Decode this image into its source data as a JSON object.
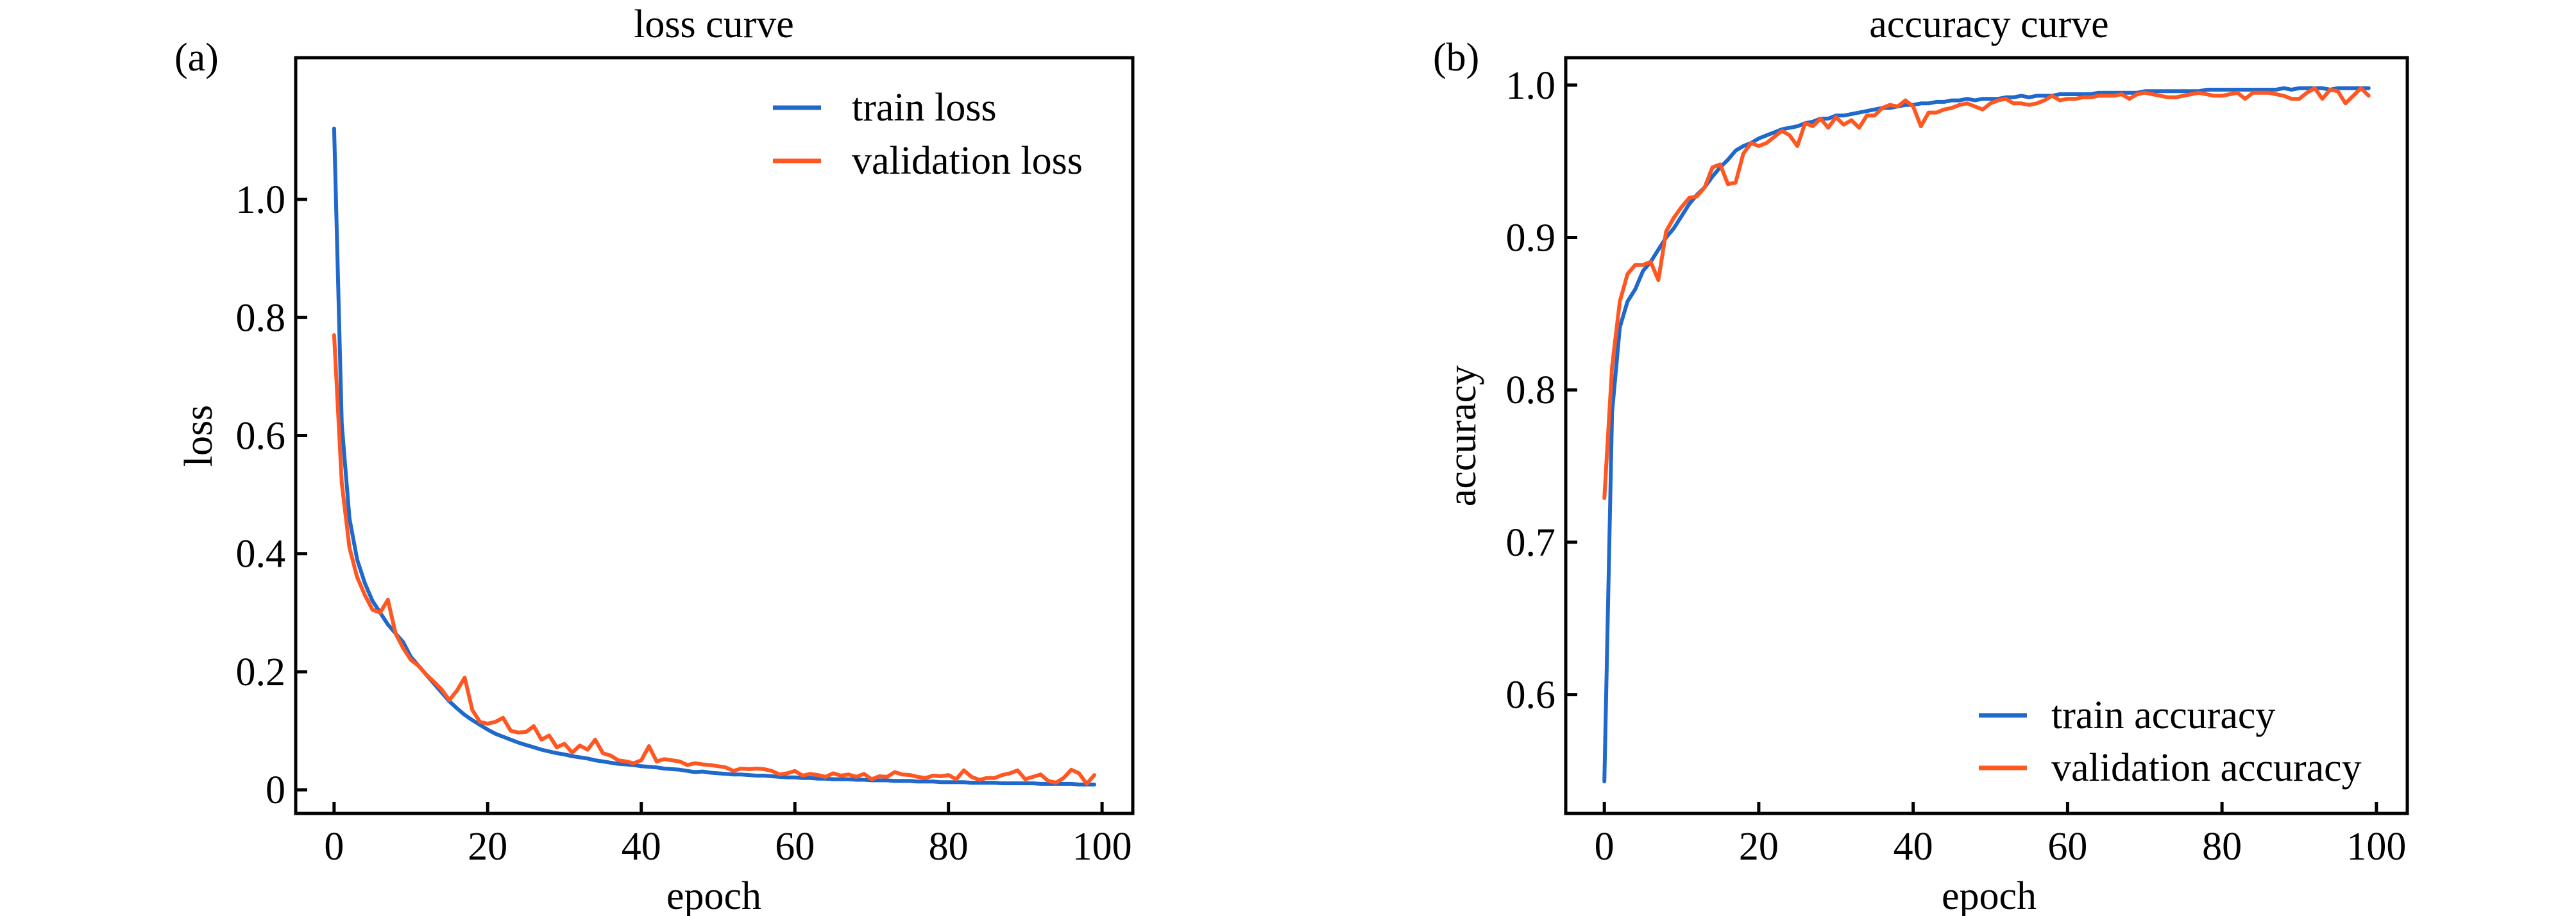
{
  "figure": {
    "colors": {
      "train": "#1f68cc",
      "validation": "#ff5722",
      "axes": "#000000"
    }
  },
  "chart_data": [
    {
      "type": "line",
      "panel_label": "(a)",
      "title": "loss curve",
      "xlabel": "epoch",
      "ylabel": "loss",
      "xlim": [
        -5,
        104
      ],
      "ylim": [
        -0.04,
        1.24
      ],
      "xticks": [
        0,
        20,
        40,
        60,
        80,
        100
      ],
      "xtick_labels": [
        "0",
        "20",
        "40",
        "60",
        "80",
        "100"
      ],
      "yticks": [
        0,
        0.2,
        0.4,
        0.6,
        0.8,
        1.0
      ],
      "ytick_labels": [
        "0",
        "0.2",
        "0.4",
        "0.6",
        "0.8",
        "1.0"
      ],
      "grid": false,
      "legend_position": "top-right",
      "series": [
        {
          "name": "train loss",
          "color": "#1f68cc",
          "x": [
            0,
            1,
            2,
            3,
            4,
            5,
            6,
            7,
            8,
            9,
            10,
            11,
            12,
            13,
            14,
            15,
            16,
            17,
            18,
            19,
            20,
            21,
            22,
            23,
            24,
            25,
            26,
            27,
            28,
            29,
            30,
            31,
            32,
            33,
            34,
            35,
            36,
            37,
            38,
            39,
            40,
            41,
            42,
            43,
            44,
            45,
            46,
            47,
            48,
            49,
            50,
            51,
            52,
            53,
            54,
            55,
            56,
            57,
            58,
            59,
            60,
            61,
            62,
            63,
            64,
            65,
            66,
            67,
            68,
            69,
            70,
            71,
            72,
            73,
            74,
            75,
            76,
            77,
            78,
            79,
            80,
            81,
            82,
            83,
            84,
            85,
            86,
            87,
            88,
            89,
            90,
            91,
            92,
            93,
            94,
            95,
            96,
            97,
            98,
            99
          ],
          "y": [
            1.12,
            0.62,
            0.46,
            0.39,
            0.35,
            0.32,
            0.3,
            0.28,
            0.265,
            0.25,
            0.225,
            0.21,
            0.195,
            0.18,
            0.165,
            0.15,
            0.138,
            0.127,
            0.118,
            0.11,
            0.102,
            0.095,
            0.09,
            0.085,
            0.08,
            0.076,
            0.072,
            0.068,
            0.065,
            0.062,
            0.06,
            0.057,
            0.055,
            0.053,
            0.05,
            0.048,
            0.046,
            0.044,
            0.043,
            0.042,
            0.04,
            0.039,
            0.038,
            0.036,
            0.035,
            0.034,
            0.032,
            0.03,
            0.031,
            0.029,
            0.028,
            0.027,
            0.026,
            0.026,
            0.025,
            0.024,
            0.024,
            0.023,
            0.022,
            0.021,
            0.021,
            0.02,
            0.02,
            0.019,
            0.019,
            0.018,
            0.018,
            0.018,
            0.017,
            0.017,
            0.016,
            0.016,
            0.016,
            0.015,
            0.015,
            0.015,
            0.014,
            0.014,
            0.014,
            0.013,
            0.013,
            0.013,
            0.013,
            0.012,
            0.012,
            0.012,
            0.012,
            0.011,
            0.011,
            0.011,
            0.011,
            0.011,
            0.01,
            0.01,
            0.01,
            0.01,
            0.01,
            0.009,
            0.009,
            0.009
          ]
        },
        {
          "name": "validation loss",
          "color": "#ff5722",
          "x": [
            0,
            1,
            2,
            3,
            4,
            5,
            6,
            7,
            8,
            9,
            10,
            11,
            12,
            13,
            14,
            15,
            16,
            17,
            18,
            19,
            20,
            21,
            22,
            23,
            24,
            25,
            26,
            27,
            28,
            29,
            30,
            31,
            32,
            33,
            34,
            35,
            36,
            37,
            38,
            39,
            40,
            41,
            42,
            43,
            44,
            45,
            46,
            47,
            48,
            49,
            50,
            51,
            52,
            53,
            54,
            55,
            56,
            57,
            58,
            59,
            60,
            61,
            62,
            63,
            64,
            65,
            66,
            67,
            68,
            69,
            70,
            71,
            72,
            73,
            74,
            75,
            76,
            77,
            78,
            79,
            80,
            81,
            82,
            83,
            84,
            85,
            86,
            87,
            88,
            89,
            90,
            91,
            92,
            93,
            94,
            95,
            96,
            97,
            98,
            99
          ],
          "y": [
            0.77,
            0.52,
            0.41,
            0.36,
            0.33,
            0.305,
            0.3,
            0.322,
            0.265,
            0.24,
            0.22,
            0.21,
            0.195,
            0.183,
            0.17,
            0.152,
            0.168,
            0.19,
            0.135,
            0.115,
            0.112,
            0.115,
            0.122,
            0.1,
            0.097,
            0.098,
            0.108,
            0.085,
            0.092,
            0.072,
            0.078,
            0.063,
            0.075,
            0.068,
            0.085,
            0.062,
            0.058,
            0.05,
            0.048,
            0.045,
            0.05,
            0.074,
            0.048,
            0.052,
            0.05,
            0.048,
            0.042,
            0.045,
            0.043,
            0.042,
            0.04,
            0.038,
            0.032,
            0.036,
            0.035,
            0.036,
            0.035,
            0.032,
            0.026,
            0.028,
            0.032,
            0.024,
            0.027,
            0.025,
            0.022,
            0.028,
            0.024,
            0.026,
            0.022,
            0.027,
            0.018,
            0.023,
            0.022,
            0.03,
            0.026,
            0.025,
            0.022,
            0.02,
            0.024,
            0.023,
            0.025,
            0.018,
            0.033,
            0.022,
            0.017,
            0.02,
            0.02,
            0.025,
            0.028,
            0.033,
            0.018,
            0.022,
            0.026,
            0.015,
            0.012,
            0.02,
            0.034,
            0.028,
            0.01,
            0.025
          ]
        }
      ]
    },
    {
      "type": "line",
      "panel_label": "(b)",
      "title": "accuracy curve",
      "xlabel": "epoch",
      "ylabel": "accuracy",
      "xlim": [
        -5,
        104
      ],
      "ylim": [
        0.522,
        1.018
      ],
      "xticks": [
        0,
        20,
        40,
        60,
        80,
        100
      ],
      "xtick_labels": [
        "0",
        "20",
        "40",
        "60",
        "80",
        "100"
      ],
      "yticks": [
        0.6,
        0.7,
        0.8,
        0.9,
        1.0
      ],
      "ytick_labels": [
        "0.6",
        "0.7",
        "0.8",
        "0.9",
        "1.0"
      ],
      "grid": false,
      "legend_position": "bottom-right",
      "series": [
        {
          "name": "train accuracy",
          "color": "#1f68cc",
          "x": [
            0,
            1,
            2,
            3,
            4,
            5,
            6,
            7,
            8,
            9,
            10,
            11,
            12,
            13,
            14,
            15,
            16,
            17,
            18,
            19,
            20,
            21,
            22,
            23,
            24,
            25,
            26,
            27,
            28,
            29,
            30,
            31,
            32,
            33,
            34,
            35,
            36,
            37,
            38,
            39,
            40,
            41,
            42,
            43,
            44,
            45,
            46,
            47,
            48,
            49,
            50,
            51,
            52,
            53,
            54,
            55,
            56,
            57,
            58,
            59,
            60,
            61,
            62,
            63,
            64,
            65,
            66,
            67,
            68,
            69,
            70,
            71,
            72,
            73,
            74,
            75,
            76,
            77,
            78,
            79,
            80,
            81,
            82,
            83,
            84,
            85,
            86,
            87,
            88,
            89,
            90,
            91,
            92,
            93,
            94,
            95,
            96,
            97,
            98,
            99
          ],
          "y": [
            0.543,
            0.785,
            0.841,
            0.858,
            0.866,
            0.878,
            0.884,
            0.892,
            0.9,
            0.906,
            0.914,
            0.922,
            0.928,
            0.933,
            0.94,
            0.946,
            0.951,
            0.957,
            0.96,
            0.962,
            0.965,
            0.967,
            0.969,
            0.971,
            0.972,
            0.973,
            0.975,
            0.976,
            0.978,
            0.978,
            0.98,
            0.98,
            0.981,
            0.982,
            0.983,
            0.984,
            0.985,
            0.985,
            0.986,
            0.987,
            0.987,
            0.988,
            0.988,
            0.989,
            0.989,
            0.99,
            0.99,
            0.991,
            0.99,
            0.991,
            0.991,
            0.991,
            0.992,
            0.992,
            0.993,
            0.992,
            0.993,
            0.993,
            0.993,
            0.994,
            0.994,
            0.994,
            0.994,
            0.994,
            0.995,
            0.995,
            0.995,
            0.995,
            0.995,
            0.995,
            0.996,
            0.996,
            0.996,
            0.996,
            0.996,
            0.996,
            0.996,
            0.996,
            0.997,
            0.997,
            0.997,
            0.997,
            0.997,
            0.997,
            0.997,
            0.997,
            0.997,
            0.997,
            0.998,
            0.997,
            0.998,
            0.998,
            0.998,
            0.998,
            0.997,
            0.998,
            0.998,
            0.998,
            0.998,
            0.998
          ]
        },
        {
          "name": "validation accuracy",
          "color": "#ff5722",
          "x": [
            0,
            1,
            2,
            3,
            4,
            5,
            6,
            7,
            8,
            9,
            10,
            11,
            12,
            13,
            14,
            15,
            16,
            17,
            18,
            19,
            20,
            21,
            22,
            23,
            24,
            25,
            26,
            27,
            28,
            29,
            30,
            31,
            32,
            33,
            34,
            35,
            36,
            37,
            38,
            39,
            40,
            41,
            42,
            43,
            44,
            45,
            46,
            47,
            48,
            49,
            50,
            51,
            52,
            53,
            54,
            55,
            56,
            57,
            58,
            59,
            60,
            61,
            62,
            63,
            64,
            65,
            66,
            67,
            68,
            69,
            70,
            71,
            72,
            73,
            74,
            75,
            76,
            77,
            78,
            79,
            80,
            81,
            82,
            83,
            84,
            85,
            86,
            87,
            88,
            89,
            90,
            91,
            92,
            93,
            94,
            95,
            96,
            97,
            98,
            99
          ],
          "y": [
            0.729,
            0.815,
            0.858,
            0.876,
            0.882,
            0.882,
            0.884,
            0.872,
            0.904,
            0.913,
            0.92,
            0.926,
            0.927,
            0.933,
            0.946,
            0.948,
            0.935,
            0.936,
            0.955,
            0.962,
            0.96,
            0.962,
            0.966,
            0.97,
            0.967,
            0.96,
            0.975,
            0.973,
            0.978,
            0.972,
            0.979,
            0.974,
            0.977,
            0.972,
            0.98,
            0.98,
            0.985,
            0.987,
            0.986,
            0.99,
            0.986,
            0.973,
            0.982,
            0.982,
            0.984,
            0.985,
            0.987,
            0.988,
            0.986,
            0.984,
            0.988,
            0.99,
            0.991,
            0.988,
            0.988,
            0.987,
            0.988,
            0.99,
            0.993,
            0.99,
            0.991,
            0.991,
            0.992,
            0.992,
            0.993,
            0.993,
            0.993,
            0.994,
            0.991,
            0.994,
            0.995,
            0.994,
            0.993,
            0.992,
            0.992,
            0.993,
            0.994,
            0.995,
            0.994,
            0.993,
            0.993,
            0.994,
            0.995,
            0.991,
            0.995,
            0.995,
            0.995,
            0.994,
            0.993,
            0.991,
            0.991,
            0.995,
            0.998,
            0.991,
            0.997,
            0.996,
            0.988,
            0.993,
            0.998,
            0.993
          ]
        }
      ]
    }
  ]
}
